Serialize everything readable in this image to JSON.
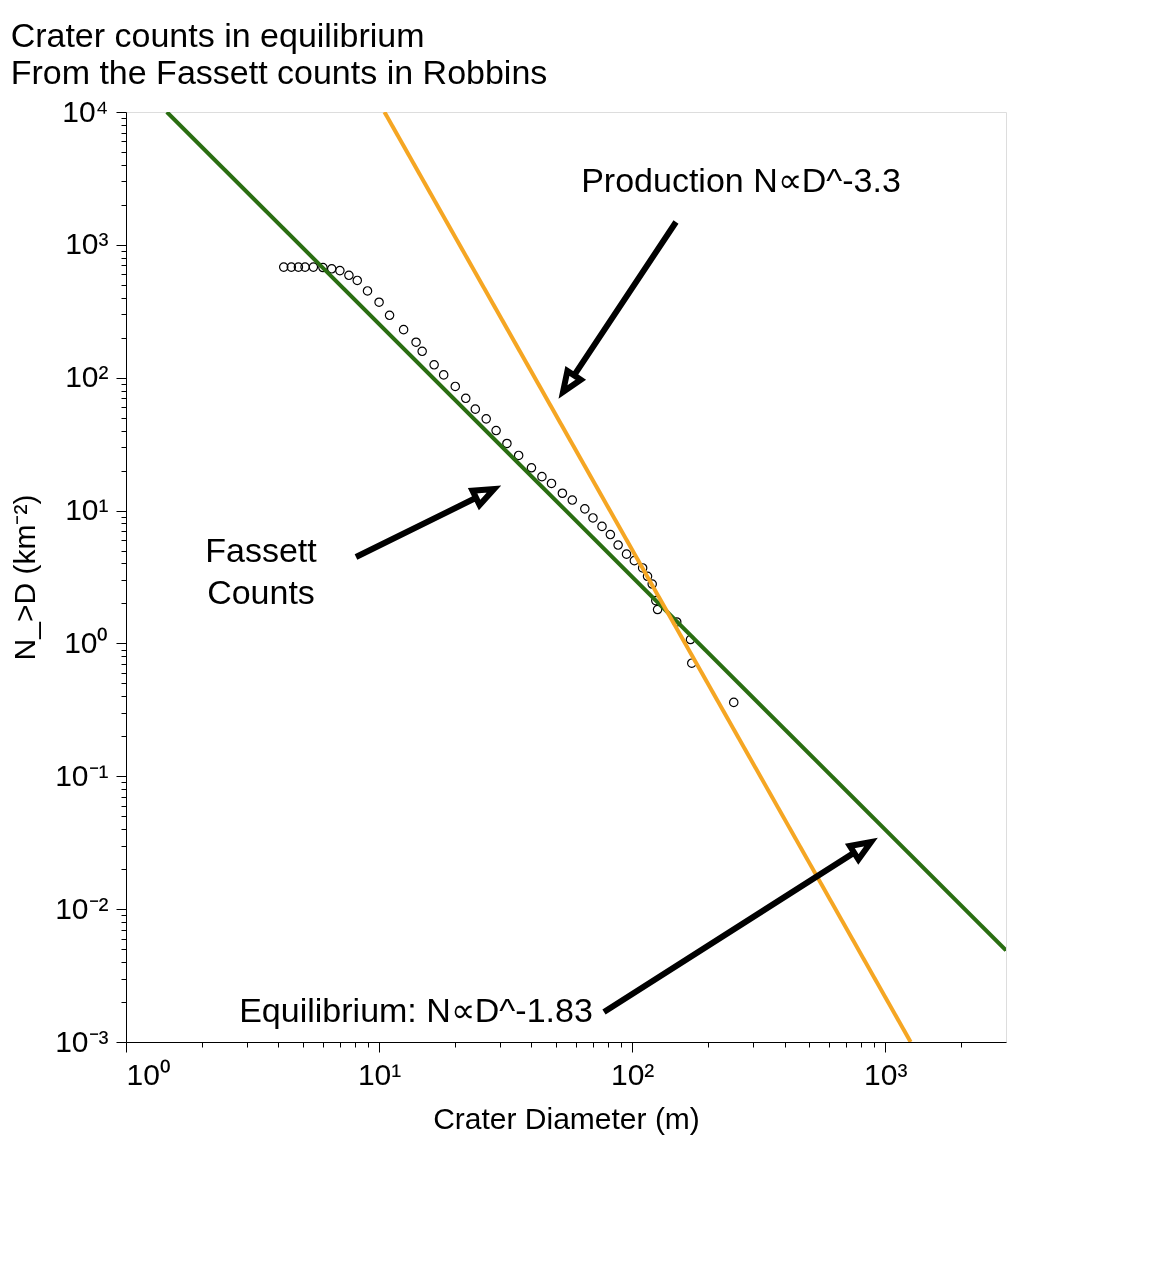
{
  "chart_data": {
    "type": "scatter",
    "title": "Crater counts in equilibrium",
    "subtitle": "From the Fassett counts in Robbins",
    "xlabel": "Crater Diameter (m)",
    "ylabel": "N_>D (km⁻²)",
    "log": "xy",
    "xlim": [
      1,
      3000
    ],
    "ylim": [
      0.001,
      10000
    ],
    "xticks": [
      {
        "value": 1,
        "label": "10⁰"
      },
      {
        "value": 2,
        "label": null
      },
      {
        "value": 3,
        "label": null
      },
      {
        "value": 4,
        "label": null
      },
      {
        "value": 5,
        "label": null
      },
      {
        "value": 6,
        "label": null
      },
      {
        "value": 7,
        "label": null
      },
      {
        "value": 8,
        "label": null
      },
      {
        "value": 9,
        "label": null
      },
      {
        "value": 10,
        "label": "10¹"
      },
      {
        "value": 20,
        "label": null
      },
      {
        "value": 30,
        "label": null
      },
      {
        "value": 40,
        "label": null
      },
      {
        "value": 50,
        "label": null
      },
      {
        "value": 60,
        "label": null
      },
      {
        "value": 70,
        "label": null
      },
      {
        "value": 80,
        "label": null
      },
      {
        "value": 90,
        "label": null
      },
      {
        "value": 100,
        "label": "10²"
      },
      {
        "value": 200,
        "label": null
      },
      {
        "value": 300,
        "label": null
      },
      {
        "value": 400,
        "label": null
      },
      {
        "value": 500,
        "label": null
      },
      {
        "value": 600,
        "label": null
      },
      {
        "value": 700,
        "label": null
      },
      {
        "value": 800,
        "label": null
      },
      {
        "value": 900,
        "label": null
      },
      {
        "value": 1000,
        "label": "10³"
      },
      {
        "value": 2000,
        "label": null
      }
    ],
    "yticks": [
      {
        "value": 0.001,
        "label": "10⁻³"
      },
      {
        "value": 0.002,
        "label": null
      },
      {
        "value": 0.003,
        "label": null
      },
      {
        "value": 0.004,
        "label": null
      },
      {
        "value": 0.005,
        "label": null
      },
      {
        "value": 0.006,
        "label": null
      },
      {
        "value": 0.007,
        "label": null
      },
      {
        "value": 0.008,
        "label": null
      },
      {
        "value": 0.009,
        "label": null
      },
      {
        "value": 0.01,
        "label": "10⁻²"
      },
      {
        "value": 0.02,
        "label": null
      },
      {
        "value": 0.03,
        "label": null
      },
      {
        "value": 0.04,
        "label": null
      },
      {
        "value": 0.05,
        "label": null
      },
      {
        "value": 0.06,
        "label": null
      },
      {
        "value": 0.07,
        "label": null
      },
      {
        "value": 0.08,
        "label": null
      },
      {
        "value": 0.09,
        "label": null
      },
      {
        "value": 0.1,
        "label": "10⁻¹"
      },
      {
        "value": 0.2,
        "label": null
      },
      {
        "value": 0.3,
        "label": null
      },
      {
        "value": 0.4,
        "label": null
      },
      {
        "value": 0.5,
        "label": null
      },
      {
        "value": 0.6,
        "label": null
      },
      {
        "value": 0.7,
        "label": null
      },
      {
        "value": 0.8,
        "label": null
      },
      {
        "value": 0.9,
        "label": null
      },
      {
        "value": 1,
        "label": "10⁰"
      },
      {
        "value": 2,
        "label": null
      },
      {
        "value": 3,
        "label": null
      },
      {
        "value": 4,
        "label": null
      },
      {
        "value": 5,
        "label": null
      },
      {
        "value": 6,
        "label": null
      },
      {
        "value": 7,
        "label": null
      },
      {
        "value": 8,
        "label": null
      },
      {
        "value": 9,
        "label": null
      },
      {
        "value": 10,
        "label": "10¹"
      },
      {
        "value": 20,
        "label": null
      },
      {
        "value": 30,
        "label": null
      },
      {
        "value": 40,
        "label": null
      },
      {
        "value": 50,
        "label": null
      },
      {
        "value": 60,
        "label": null
      },
      {
        "value": 70,
        "label": null
      },
      {
        "value": 80,
        "label": null
      },
      {
        "value": 90,
        "label": null
      },
      {
        "value": 100,
        "label": "10²"
      },
      {
        "value": 200,
        "label": null
      },
      {
        "value": 300,
        "label": null
      },
      {
        "value": 400,
        "label": null
      },
      {
        "value": 500,
        "label": null
      },
      {
        "value": 600,
        "label": null
      },
      {
        "value": 700,
        "label": null
      },
      {
        "value": 800,
        "label": null
      },
      {
        "value": 900,
        "label": null
      },
      {
        "value": 1000,
        "label": "10³"
      },
      {
        "value": 2000,
        "label": null
      },
      {
        "value": 3000,
        "label": null
      },
      {
        "value": 4000,
        "label": null
      },
      {
        "value": 5000,
        "label": null
      },
      {
        "value": 6000,
        "label": null
      },
      {
        "value": 7000,
        "label": null
      },
      {
        "value": 8000,
        "label": null
      },
      {
        "value": 9000,
        "label": null
      },
      {
        "value": 10000,
        "label": "10⁴"
      }
    ],
    "series": [
      {
        "type": "scatter",
        "marker": "circle",
        "color": "#000000",
        "x": [
          4.2,
          4.5,
          4.8,
          5.1,
          5.5,
          6.0,
          6.5,
          7.0,
          7.6,
          8.2,
          9.0,
          10,
          11,
          12.5,
          14,
          14.8,
          16.5,
          18,
          20,
          22,
          24,
          26.5,
          29,
          32,
          35.6,
          40,
          44,
          48,
          53,
          58,
          65,
          70,
          76,
          82,
          88,
          95,
          102,
          110,
          115,
          120,
          124,
          126,
          150,
          170,
          172,
          252
        ],
        "values": [
          680,
          680,
          680,
          680,
          680,
          675,
          660,
          640,
          590,
          540,
          450,
          370,
          295,
          230,
          185,
          158,
          125,
          105,
          86,
          70,
          58,
          49,
          40,
          32,
          26,
          21,
          18,
          16,
          13.5,
          12,
          10.3,
          8.8,
          7.6,
          6.6,
          5.5,
          4.7,
          4.2,
          3.7,
          3.2,
          2.8,
          2.1,
          1.8,
          1.45,
          1.07,
          0.71,
          0.36
        ]
      },
      {
        "type": "line",
        "color": "#2a6e12",
        "x": [
          1.45,
          3000
        ],
        "values": [
          10000,
          0.0049
        ]
      },
      {
        "type": "line",
        "color": "#f5a623",
        "x": [
          10.5,
          1260
        ],
        "values": [
          10000,
          0.001
        ]
      }
    ],
    "annotations": [
      "Production N∝D^-3.3",
      "Fassett\nCounts",
      "Equilibrium: N∝D^-1.83"
    ]
  }
}
